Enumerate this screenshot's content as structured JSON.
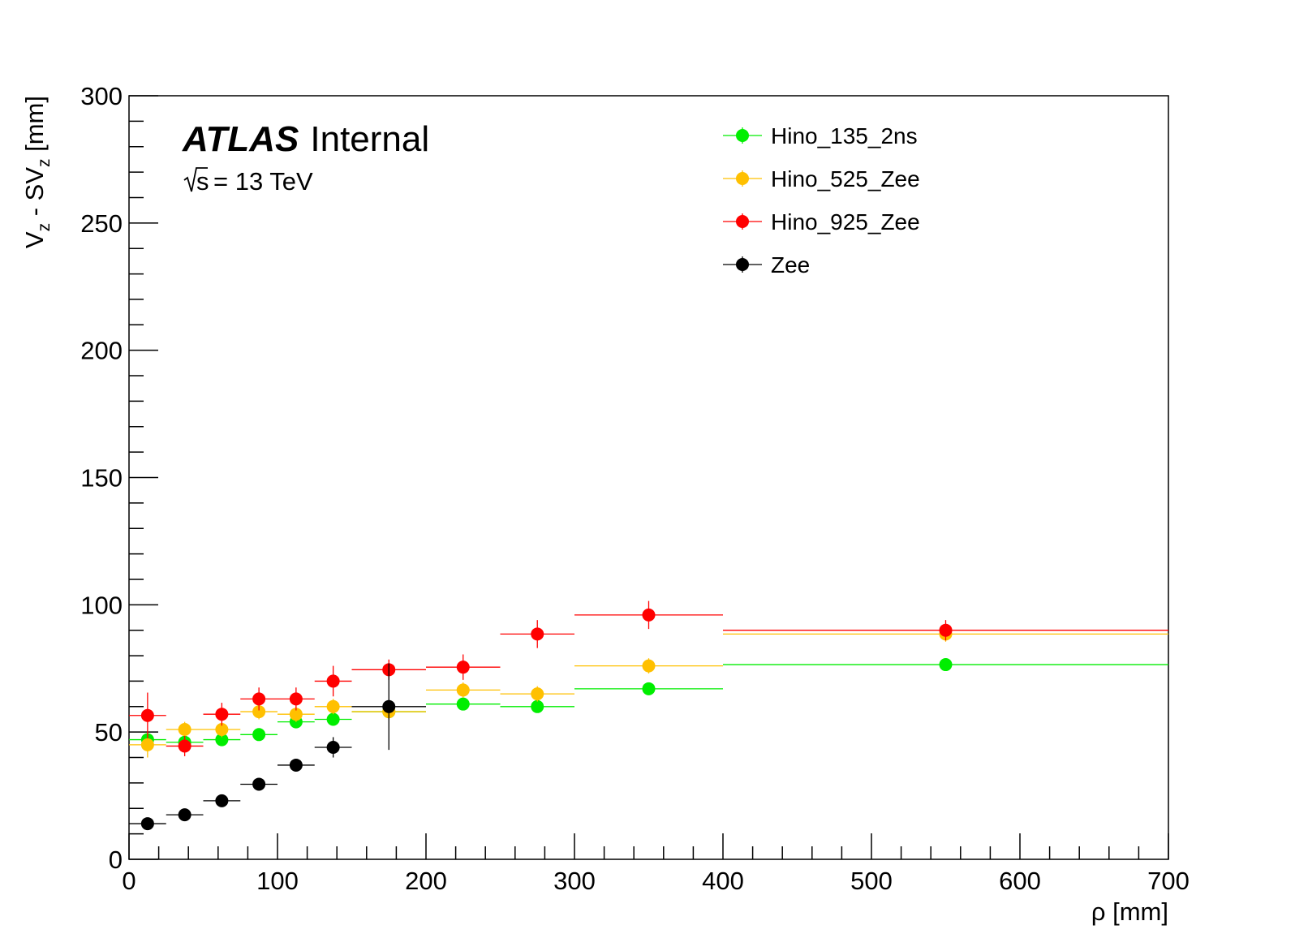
{
  "chart_data": {
    "type": "scatter",
    "experiment_label": "ATLAS",
    "status_label": "Internal",
    "energy_label": "= 13 TeV",
    "energy_symbol": "s",
    "xlabel": "ρ [mm]",
    "ylabel": {
      "prefix": "V",
      "sub1": "z",
      "middle": " - SV",
      "sub2": "z",
      "suffix": " [mm]"
    },
    "xlim": [
      0,
      700
    ],
    "ylim": [
      0,
      300
    ],
    "x_ticks": [
      "0",
      "100",
      "200",
      "300",
      "400",
      "500",
      "600",
      "700"
    ],
    "y_ticks": [
      "0",
      "50",
      "100",
      "150",
      "200",
      "250",
      "300"
    ],
    "legend_position": "top-right",
    "series": [
      {
        "name": "Hino_135_2ns",
        "color": "#00ee00",
        "points": [
          {
            "x": 12.5,
            "y": 47,
            "xerr": 12.5,
            "yerr": 2
          },
          {
            "x": 37.5,
            "y": 46,
            "xerr": 12.5,
            "yerr": 2
          },
          {
            "x": 62.5,
            "y": 47,
            "xerr": 12.5,
            "yerr": 2
          },
          {
            "x": 87.5,
            "y": 49,
            "xerr": 12.5,
            "yerr": 2
          },
          {
            "x": 112.5,
            "y": 54,
            "xerr": 12.5,
            "yerr": 2
          },
          {
            "x": 137.5,
            "y": 55,
            "xerr": 12.5,
            "yerr": 2
          },
          {
            "x": 175,
            "y": 58,
            "xerr": 25,
            "yerr": 2
          },
          {
            "x": 225,
            "y": 61,
            "xerr": 25,
            "yerr": 2
          },
          {
            "x": 275,
            "y": 60,
            "xerr": 25,
            "yerr": 2
          },
          {
            "x": 350,
            "y": 67,
            "xerr": 50,
            "yerr": 2
          },
          {
            "x": 550,
            "y": 76.5,
            "xerr": 150,
            "yerr": 1.5
          }
        ]
      },
      {
        "name": "Hino_525_Zee",
        "color": "#ffc000",
        "points": [
          {
            "x": 12.5,
            "y": 45,
            "xerr": 12.5,
            "yerr": 5
          },
          {
            "x": 37.5,
            "y": 51,
            "xerr": 12.5,
            "yerr": 3
          },
          {
            "x": 62.5,
            "y": 51,
            "xerr": 12.5,
            "yerr": 3
          },
          {
            "x": 87.5,
            "y": 58,
            "xerr": 12.5,
            "yerr": 3
          },
          {
            "x": 112.5,
            "y": 57,
            "xerr": 12.5,
            "yerr": 3
          },
          {
            "x": 137.5,
            "y": 60,
            "xerr": 12.5,
            "yerr": 3
          },
          {
            "x": 175,
            "y": 58,
            "xerr": 25,
            "yerr": 3
          },
          {
            "x": 225,
            "y": 66.5,
            "xerr": 25,
            "yerr": 3
          },
          {
            "x": 275,
            "y": 65,
            "xerr": 25,
            "yerr": 3
          },
          {
            "x": 350,
            "y": 76,
            "xerr": 50,
            "yerr": 3
          },
          {
            "x": 550,
            "y": 88.5,
            "xerr": 150,
            "yerr": 3
          }
        ]
      },
      {
        "name": "Hino_925_Zee",
        "color": "#ff0000",
        "points": [
          {
            "x": 12.5,
            "y": 56.5,
            "xerr": 12.5,
            "yerr": 9
          },
          {
            "x": 37.5,
            "y": 44.5,
            "xerr": 12.5,
            "yerr": 4
          },
          {
            "x": 62.5,
            "y": 57,
            "xerr": 12.5,
            "yerr": 4.5
          },
          {
            "x": 87.5,
            "y": 63,
            "xerr": 12.5,
            "yerr": 4.5
          },
          {
            "x": 112.5,
            "y": 63,
            "xerr": 12.5,
            "yerr": 4.5
          },
          {
            "x": 137.5,
            "y": 70,
            "xerr": 12.5,
            "yerr": 6
          },
          {
            "x": 175,
            "y": 74.5,
            "xerr": 25,
            "yerr": 4
          },
          {
            "x": 225,
            "y": 75.5,
            "xerr": 25,
            "yerr": 5
          },
          {
            "x": 275,
            "y": 88.5,
            "xerr": 25,
            "yerr": 5.5
          },
          {
            "x": 350,
            "y": 96,
            "xerr": 50,
            "yerr": 5.5
          },
          {
            "x": 550,
            "y": 90,
            "xerr": 150,
            "yerr": 4
          }
        ]
      },
      {
        "name": "Zee",
        "color": "#000000",
        "points": [
          {
            "x": 12.5,
            "y": 14,
            "xerr": 12.5,
            "yerr": 1
          },
          {
            "x": 37.5,
            "y": 17.5,
            "xerr": 12.5,
            "yerr": 1
          },
          {
            "x": 62.5,
            "y": 23,
            "xerr": 12.5,
            "yerr": 1
          },
          {
            "x": 87.5,
            "y": 29.5,
            "xerr": 12.5,
            "yerr": 1
          },
          {
            "x": 112.5,
            "y": 37,
            "xerr": 12.5,
            "yerr": 1.5
          },
          {
            "x": 137.5,
            "y": 44,
            "xerr": 12.5,
            "yerr": 4
          },
          {
            "x": 175,
            "y": 60,
            "xerr": 25,
            "yerr": 17
          }
        ]
      }
    ]
  }
}
